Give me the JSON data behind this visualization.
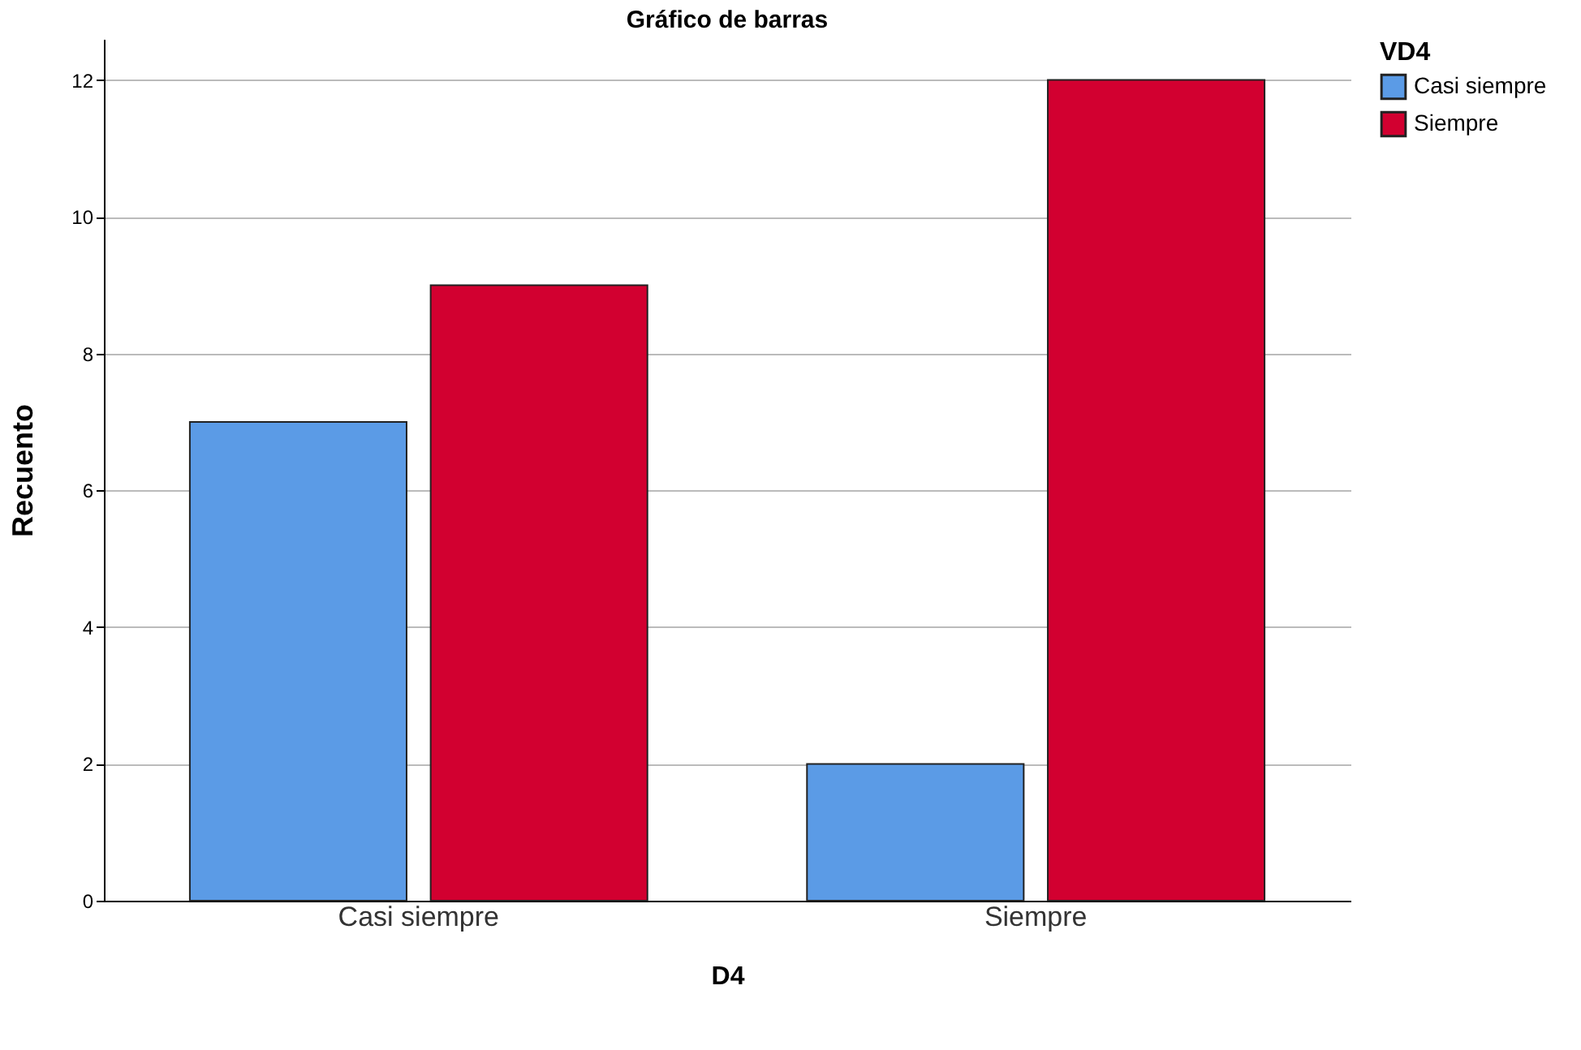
{
  "chart_data": {
    "type": "bar",
    "title": "Gráfico de barras",
    "xlabel": "D4",
    "ylabel": "Recuento",
    "legend_title": "VD4",
    "categories": [
      "Casi siempre",
      "Siempre"
    ],
    "series": [
      {
        "name": "Casi siempre",
        "color": "#5b9be6",
        "values": [
          7,
          2
        ]
      },
      {
        "name": "Siempre",
        "color": "#d20030",
        "values": [
          9,
          12
        ]
      }
    ],
    "ylim": [
      0,
      12.6
    ],
    "yticks": [
      0,
      2,
      4,
      6,
      8,
      10,
      12
    ],
    "grid": "y",
    "legend": "top right"
  }
}
